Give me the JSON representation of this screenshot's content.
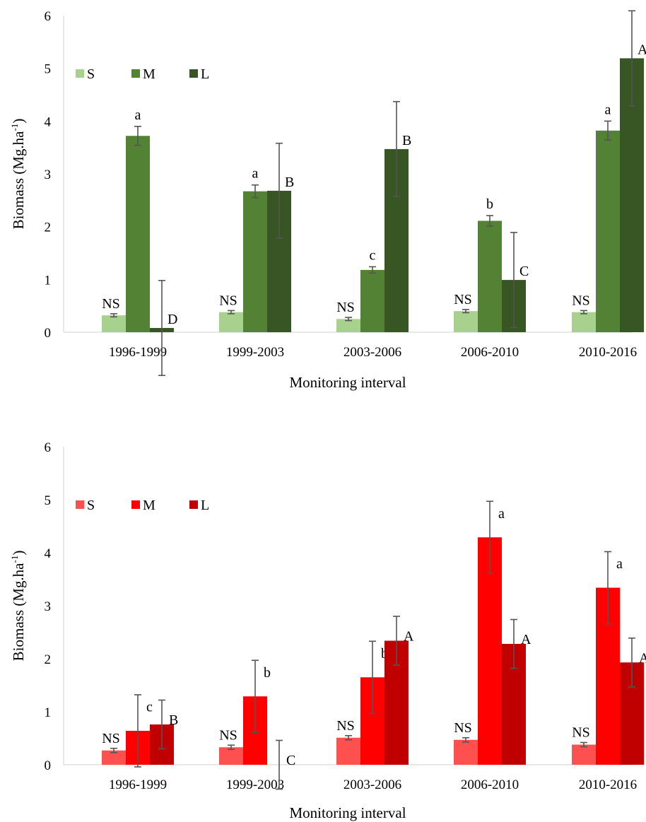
{
  "chart_data": [
    {
      "type": "bar",
      "categories": [
        "1996-1999",
        "1999-2003",
        "2003-2006",
        "2006-2010",
        "2010-2016"
      ],
      "xlabel": "Monitoring interval",
      "ylabel": "Biomass (Mg.ha",
      "ylabel_superscript": "-1",
      "ylabel_suffix": ")",
      "ylim": [
        0,
        6
      ],
      "yticks": [
        "0",
        "1",
        "2",
        "3",
        "4",
        "5",
        "6"
      ],
      "grid": false,
      "legend_position": "top-left",
      "series": [
        {
          "name": "S",
          "color": "#a9d18e",
          "values": [
            0.32,
            0.38,
            0.25,
            0.4,
            0.38
          ],
          "errors": [
            0.03,
            0.03,
            0.03,
            0.03,
            0.03
          ],
          "labels": [
            "NS",
            "NS",
            "NS",
            "NS",
            "NS"
          ]
        },
        {
          "name": "M",
          "color": "#548235",
          "values": [
            3.72,
            2.67,
            1.18,
            2.11,
            3.82
          ],
          "errors": [
            0.18,
            0.12,
            0.06,
            0.1,
            0.18
          ],
          "labels": [
            "a",
            "a",
            "c",
            "b",
            "a"
          ]
        },
        {
          "name": "L",
          "color": "#375623",
          "values": [
            0.08,
            2.68,
            3.47,
            0.99,
            5.19
          ],
          "errors": [
            0.9,
            0.9,
            0.9,
            0.9,
            0.9
          ],
          "labels": [
            "D",
            "B",
            "B",
            "C",
            "A"
          ]
        }
      ]
    },
    {
      "type": "bar",
      "categories": [
        "1996-1999",
        "1999-2003",
        "2003-2006",
        "2006-2010",
        "2010-2016"
      ],
      "xlabel": "Monitoring interval",
      "ylabel": "Biomass (Mg.ha",
      "ylabel_superscript": "-1",
      "ylabel_suffix": ")",
      "ylim": [
        0,
        6
      ],
      "yticks": [
        "0",
        "1",
        "2",
        "3",
        "4",
        "5",
        "6"
      ],
      "grid": false,
      "legend_position": "top-left",
      "series": [
        {
          "name": "S",
          "color": "#ff5050",
          "values": [
            0.27,
            0.33,
            0.51,
            0.47,
            0.38
          ],
          "errors": [
            0.04,
            0.04,
            0.04,
            0.04,
            0.04
          ],
          "labels": [
            "NS",
            "NS",
            "NS",
            "NS",
            "NS"
          ]
        },
        {
          "name": "M",
          "color": "#ff0000",
          "values": [
            0.64,
            1.29,
            1.65,
            4.29,
            3.34
          ],
          "errors": [
            0.68,
            0.68,
            0.68,
            0.68,
            0.68
          ],
          "labels": [
            "c",
            "b",
            "b",
            "a",
            "a"
          ]
        },
        {
          "name": "L",
          "color": "#c00000",
          "values": [
            0.76,
            0.0,
            2.34,
            2.28,
            1.93
          ],
          "errors": [
            0.46,
            0.46,
            0.46,
            0.46,
            0.46
          ],
          "labels": [
            "B",
            "C",
            "A",
            "A",
            "A"
          ]
        }
      ]
    }
  ]
}
